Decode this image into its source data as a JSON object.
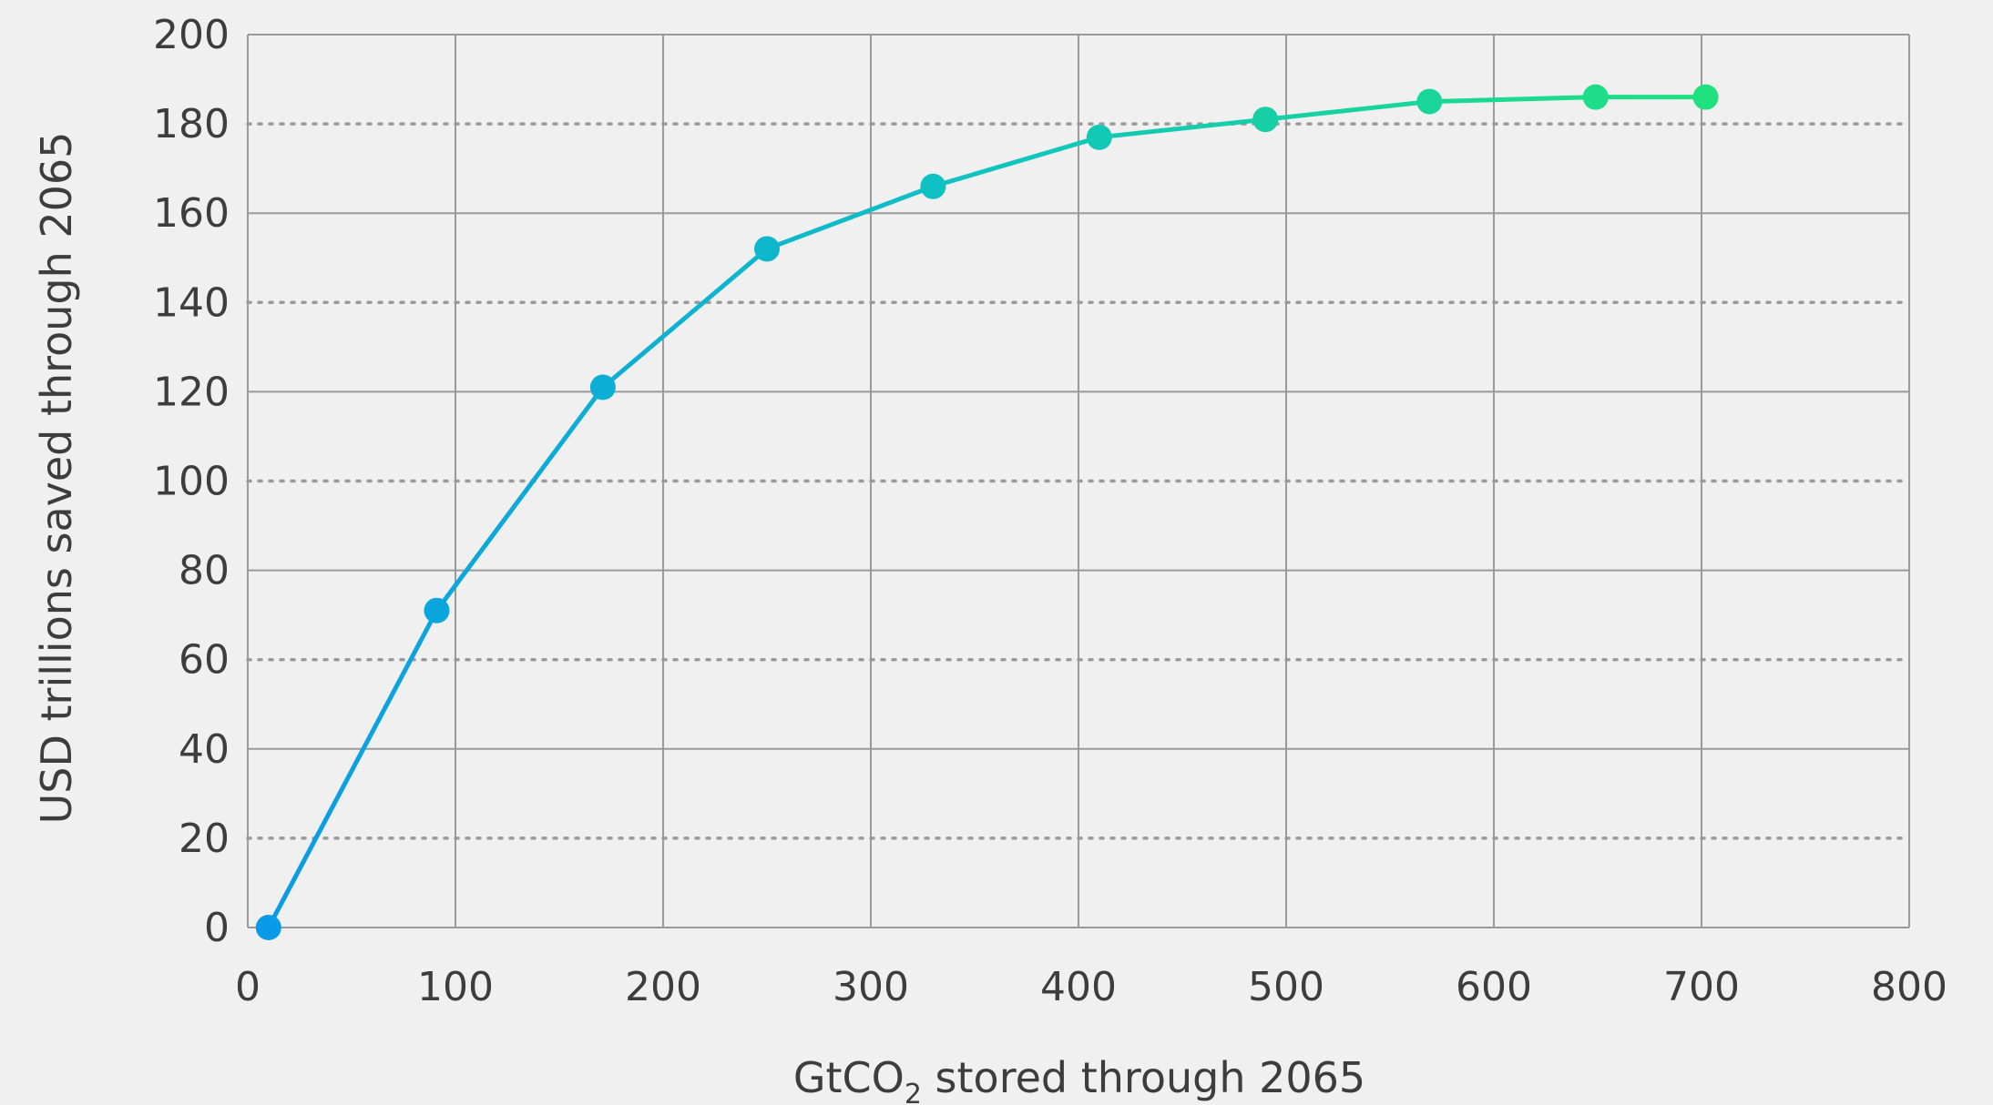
{
  "chart_data": {
    "type": "line",
    "xlabel_main": "GtCO",
    "xlabel_sub": "2",
    "xlabel_rest": " stored through 2065",
    "ylabel": "USD trillions saved through 2065",
    "xlim": [
      0,
      800
    ],
    "ylim": [
      0,
      200
    ],
    "x_ticks": [
      0,
      100,
      200,
      300,
      400,
      500,
      600,
      700,
      800
    ],
    "y_ticks": [
      0,
      20,
      40,
      60,
      80,
      100,
      120,
      140,
      160,
      180,
      200
    ],
    "x_tick_labels": [
      "0",
      "100",
      "200",
      "300",
      "400",
      "500",
      "600",
      "700",
      "800"
    ],
    "y_tick_labels": [
      "0",
      "20",
      "40",
      "60",
      "80",
      "100",
      "120",
      "140",
      "160",
      "180",
      "200"
    ],
    "grid": {
      "vertical": "solid",
      "horizontal_major": "solid",
      "horizontal_minor": "dotted"
    },
    "colors": {
      "background": "#f0f0f0",
      "grid": "#9a9a9a",
      "gradient_start": "#0a9be8",
      "gradient_mid": "#10c4c0",
      "gradient_end": "#1fe27e"
    },
    "series": [
      {
        "x": [
          10,
          91,
          171,
          250,
          330,
          410,
          490,
          569,
          649,
          702
        ],
        "y": [
          0,
          71,
          121,
          152,
          166,
          177,
          181,
          185,
          186,
          186
        ]
      }
    ]
  }
}
